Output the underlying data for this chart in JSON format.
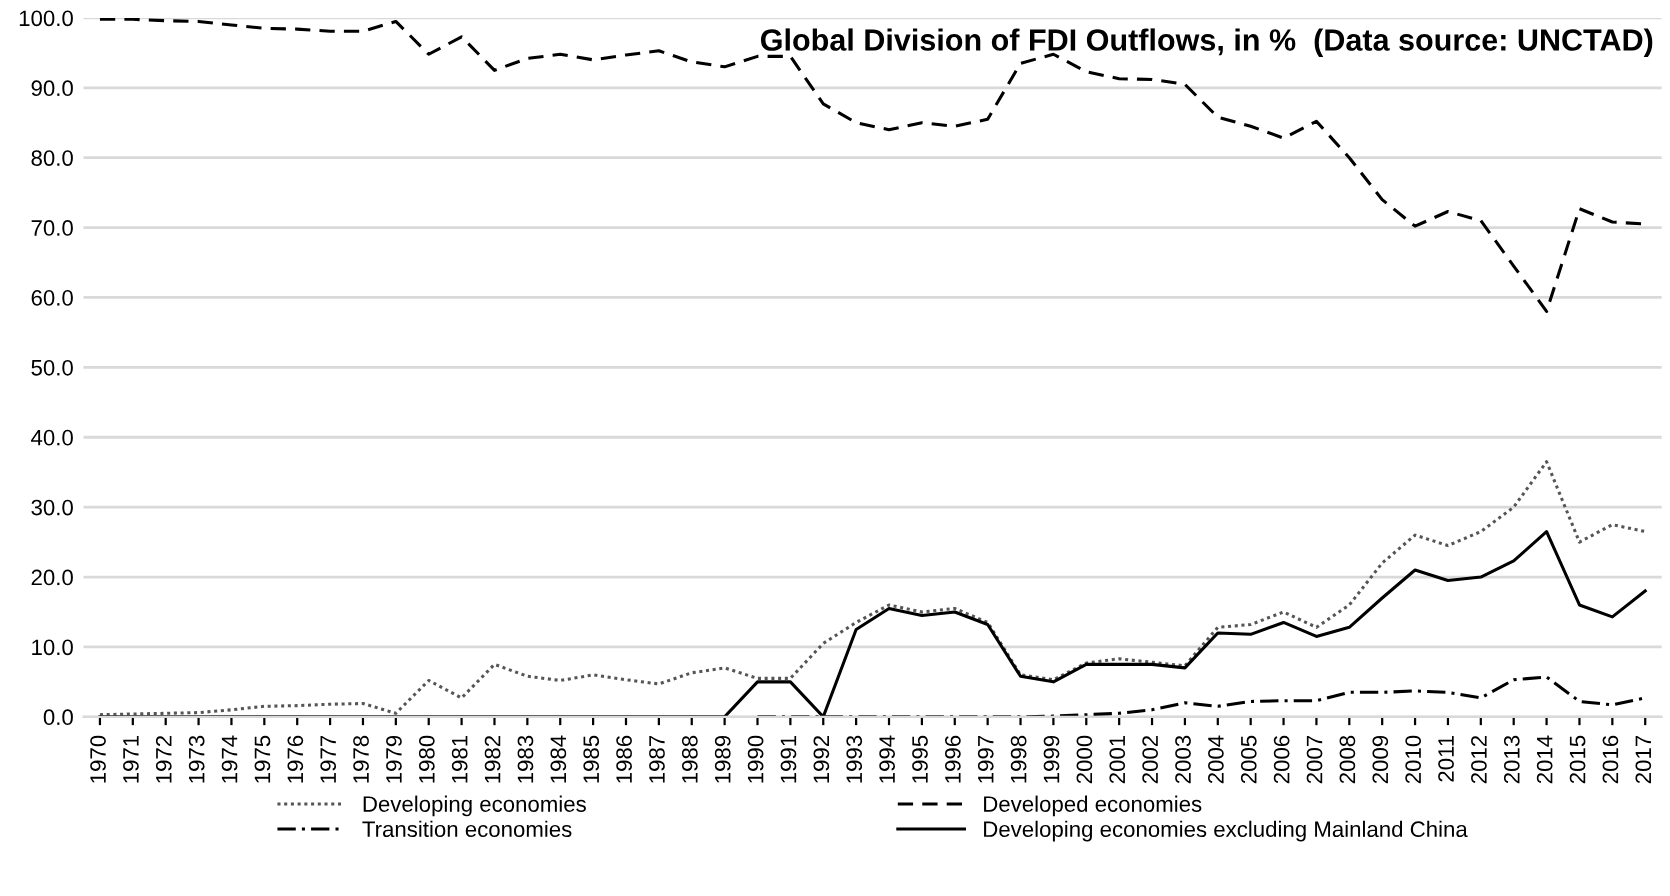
{
  "chart_data": {
    "type": "line",
    "title": "Global Division of FDI Outflows, in %  (Data source: UNCTAD)",
    "categories": [
      "1970",
      "1971",
      "1972",
      "1973",
      "1974",
      "1975",
      "1976",
      "1977",
      "1978",
      "1979",
      "1980",
      "1981",
      "1982",
      "1983",
      "1984",
      "1985",
      "1986",
      "1987",
      "1988",
      "1989",
      "1990",
      "1991",
      "1992",
      "1993",
      "1994",
      "1995",
      "1996",
      "1997",
      "1998",
      "1999",
      "2000",
      "2001",
      "2002",
      "2003",
      "2004",
      "2005",
      "2006",
      "2007",
      "2008",
      "2009",
      "2010",
      "2011",
      "2012",
      "2013",
      "2014",
      "2015",
      "2016",
      "2017"
    ],
    "series": [
      {
        "name": "Developing economies",
        "color": "#555555",
        "line_style": "dotted",
        "values": [
          0.3,
          0.4,
          0.5,
          0.6,
          1.0,
          1.5,
          1.6,
          1.8,
          1.9,
          0.5,
          5.2,
          2.7,
          7.5,
          5.8,
          5.2,
          6.0,
          5.3,
          4.7,
          6.3,
          7.0,
          5.5,
          5.5,
          10.5,
          13.5,
          16.0,
          15.0,
          15.5,
          13.5,
          6.0,
          5.3,
          7.7,
          8.3,
          7.8,
          7.3,
          12.8,
          13.2,
          15.0,
          12.8,
          16.0,
          22.0,
          26.0,
          24.5,
          26.5,
          30.0,
          36.5,
          25.0,
          27.5,
          26.5
        ]
      },
      {
        "name": "Transition economies",
        "color": "#000000",
        "line_style": "dashdot",
        "values": [
          null,
          null,
          null,
          null,
          null,
          null,
          null,
          null,
          null,
          null,
          null,
          null,
          null,
          null,
          null,
          null,
          null,
          null,
          null,
          null,
          0,
          0,
          0,
          0,
          0,
          0,
          0,
          0,
          0,
          0.1,
          0.3,
          0.5,
          1.0,
          2.0,
          1.5,
          2.2,
          2.3,
          2.3,
          3.5,
          3.5,
          3.7,
          3.5,
          2.7,
          5.3,
          5.7,
          2.2,
          1.7,
          2.7
        ]
      },
      {
        "name": "Developed economies",
        "color": "#000000",
        "line_style": "dashed",
        "values": [
          99.8,
          99.8,
          99.6,
          99.5,
          99.0,
          98.5,
          98.4,
          98.1,
          98.1,
          99.5,
          94.8,
          97.3,
          92.5,
          94.2,
          94.8,
          94.0,
          94.7,
          95.3,
          93.7,
          93.0,
          94.5,
          94.5,
          87.7,
          85.0,
          84.0,
          85.0,
          84.5,
          85.5,
          93.5,
          94.8,
          92.3,
          91.3,
          91.2,
          90.5,
          85.8,
          84.5,
          82.8,
          85.2,
          80.0,
          74.0,
          70.2,
          72.3,
          71.0,
          64.5,
          58.0,
          72.7,
          70.8,
          70.5
        ]
      },
      {
        "name": "Developing economies excluding Mainland China",
        "color": "#000000",
        "line_style": "solid",
        "values": [
          0,
          0,
          0,
          0,
          0,
          0,
          0,
          0,
          0,
          0,
          0,
          0,
          0,
          0,
          0,
          0,
          0,
          0,
          0,
          0,
          5.0,
          5.0,
          0,
          12.5,
          15.5,
          14.5,
          15.0,
          13.2,
          5.8,
          5.0,
          7.5,
          7.5,
          7.5,
          7.0,
          12.0,
          11.8,
          13.5,
          11.5,
          12.8,
          17.0,
          21.0,
          19.5,
          20.0,
          22.3,
          26.5,
          16.0,
          14.3,
          18.0
        ]
      }
    ],
    "ylim": [
      0,
      100
    ],
    "yticks": [
      {
        "value": 0,
        "label": "0.0"
      },
      {
        "value": 10,
        "label": "10.0"
      },
      {
        "value": 20,
        "label": "20.0"
      },
      {
        "value": 30,
        "label": "30.0"
      },
      {
        "value": 40,
        "label": "40.0"
      },
      {
        "value": 50,
        "label": "50.0"
      },
      {
        "value": 60,
        "label": "60.0"
      },
      {
        "value": 70,
        "label": "70.0"
      },
      {
        "value": 80,
        "label": "80.0"
      },
      {
        "value": 90,
        "label": "90.0"
      },
      {
        "value": 100,
        "label": "100.0"
      }
    ],
    "grid": "y",
    "legend": "bottom",
    "marker": "none"
  }
}
